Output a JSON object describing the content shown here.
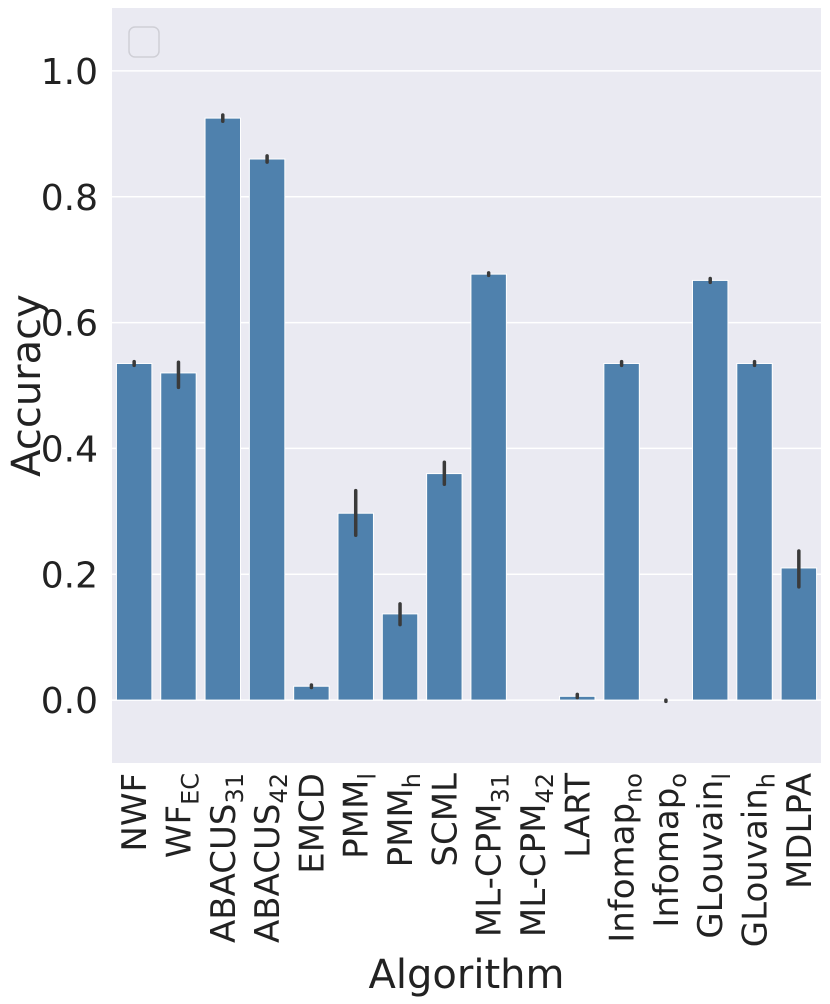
{
  "chart_data": {
    "type": "bar",
    "title": "",
    "xlabel": "Algorithm",
    "ylabel": "Accuracy",
    "ylim": [
      -0.1,
      1.1
    ],
    "yticks": [
      "0.0",
      "0.2",
      "0.4",
      "0.6",
      "0.8",
      "1.0"
    ],
    "grid": true,
    "legend": "top-left (empty)",
    "bar_color": "#4f81ad",
    "background_color": "#eaeaf2",
    "error_color": "#3a3a3a",
    "categories": [
      {
        "base": "NWF",
        "sub": ""
      },
      {
        "base": "WF",
        "sub": "EC"
      },
      {
        "base": "ABACUS",
        "sub": "31"
      },
      {
        "base": "ABACUS",
        "sub": "42"
      },
      {
        "base": "EMCD",
        "sub": ""
      },
      {
        "base": "PMM",
        "sub": "l"
      },
      {
        "base": "PMM",
        "sub": "h"
      },
      {
        "base": "SCML",
        "sub": ""
      },
      {
        "base": "ML-CPM",
        "sub": "31"
      },
      {
        "base": "ML-CPM",
        "sub": "42"
      },
      {
        "base": "LART",
        "sub": ""
      },
      {
        "base": "Infomap",
        "sub": "no"
      },
      {
        "base": "Infomap",
        "sub": "o"
      },
      {
        "base": "GLouvain",
        "sub": "l"
      },
      {
        "base": "GLouvain",
        "sub": "h"
      },
      {
        "base": "MDLPA",
        "sub": ""
      }
    ],
    "values": [
      0.535,
      0.52,
      0.925,
      0.86,
      0.022,
      0.297,
      0.137,
      0.36,
      0.677,
      0.0,
      0.006,
      0.535,
      0.0,
      0.667,
      0.535,
      0.21
    ],
    "error_low": [
      0.532,
      0.497,
      0.92,
      0.855,
      0.02,
      0.262,
      0.12,
      0.343,
      0.675,
      0.0,
      0.004,
      0.532,
      -0.002,
      0.664,
      0.532,
      0.18
    ],
    "error_high": [
      0.538,
      0.537,
      0.93,
      0.865,
      0.024,
      0.333,
      0.153,
      0.378,
      0.679,
      0.0,
      0.009,
      0.538,
      0.0,
      0.67,
      0.538,
      0.237
    ]
  }
}
